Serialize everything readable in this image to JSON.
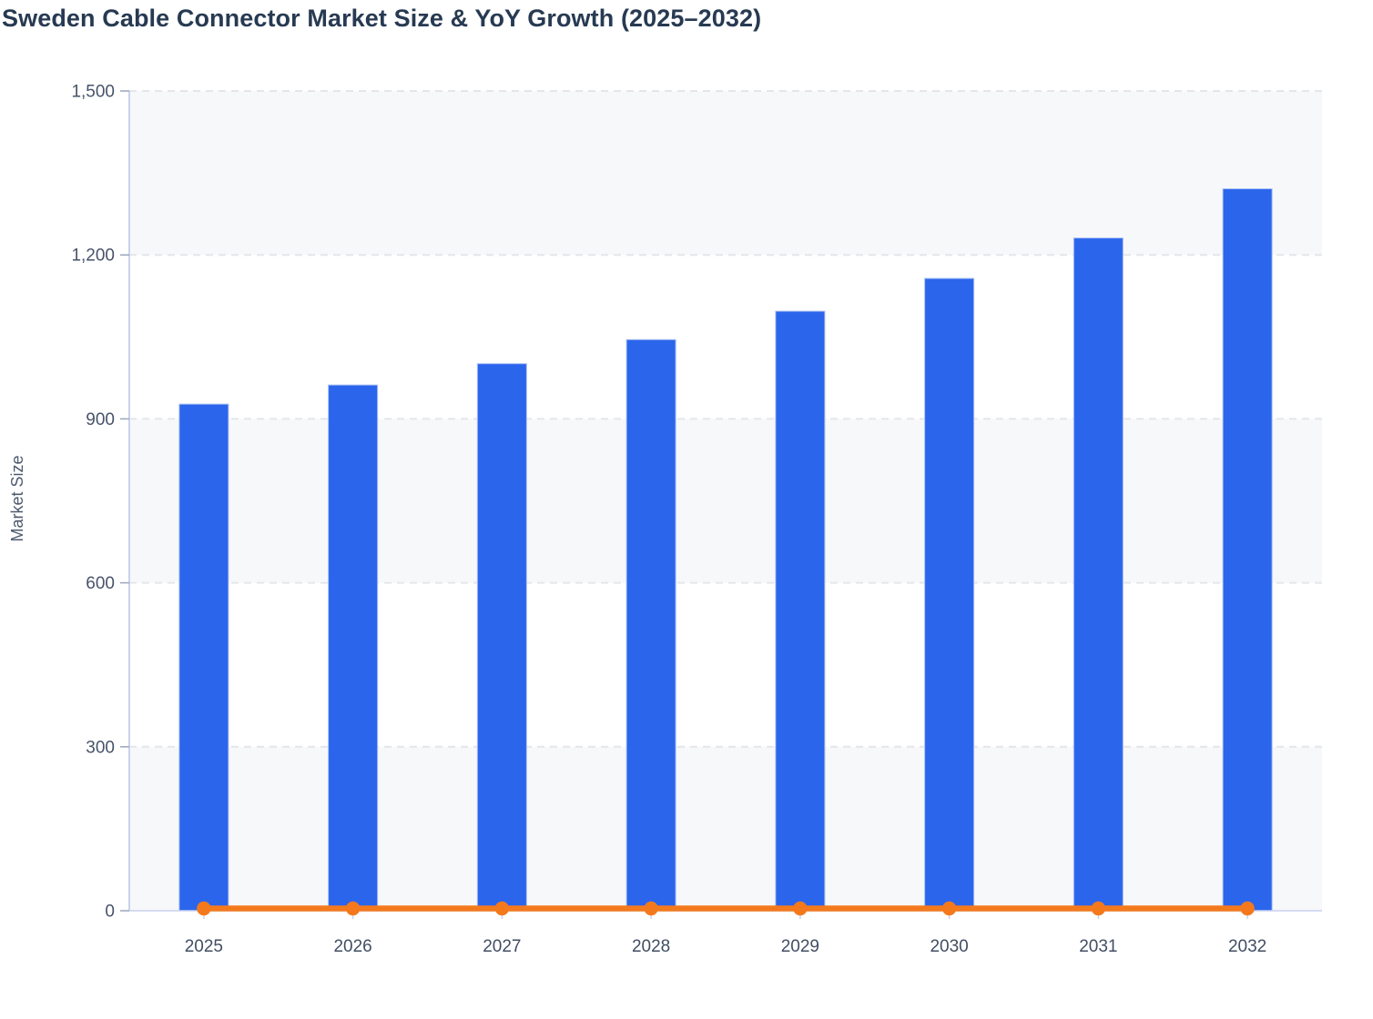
{
  "title": "Sweden Cable Connector Market Size & YoY Growth (2025–2032)",
  "y_axis": {
    "label": "Market Size",
    "tick_values": [
      0,
      300,
      600,
      900,
      1200,
      1500
    ],
    "tick_labels": [
      "0",
      "300",
      "600",
      "900",
      "1,200",
      "1,500"
    ]
  },
  "x_axis": {
    "categories": [
      "2025",
      "2026",
      "2027",
      "2028",
      "2029",
      "2030",
      "2031",
      "2032"
    ]
  },
  "colors": {
    "bar_fill": "#2B65EC",
    "bar_border": "#A7BDF3",
    "line": "#F47A1E",
    "marker": "#F4791C",
    "band_fill": "#F7F8FA",
    "gridline": "#E4E6EA",
    "axis_line": "#C9D2EE",
    "tick_mark": "#9AA6BB",
    "title_text": "#273A52",
    "y_label_text": "#47536B",
    "x_label_text": "#414E63"
  },
  "chart_data": {
    "type": "bar",
    "combo": "bar+line",
    "title": "Sweden Cable Connector Market Size & YoY Growth (2025–2032)",
    "categories": [
      "2025",
      "2026",
      "2027",
      "2028",
      "2029",
      "2030",
      "2031",
      "2032"
    ],
    "series": [
      {
        "name": "Market Size",
        "type": "bar",
        "values": [
          927,
          962,
          1001,
          1045,
          1097,
          1157,
          1231,
          1321
        ]
      },
      {
        "name": "YoY Growth",
        "type": "line",
        "values": [
          0,
          0,
          0,
          0,
          0,
          0,
          0,
          0
        ]
      }
    ],
    "xlabel": "",
    "ylabel": "Market Size",
    "ylim": [
      0,
      1500
    ],
    "grid": true,
    "gridline_style": "dashed",
    "alternating_bands": true,
    "legend": false,
    "legend_position": "none"
  }
}
